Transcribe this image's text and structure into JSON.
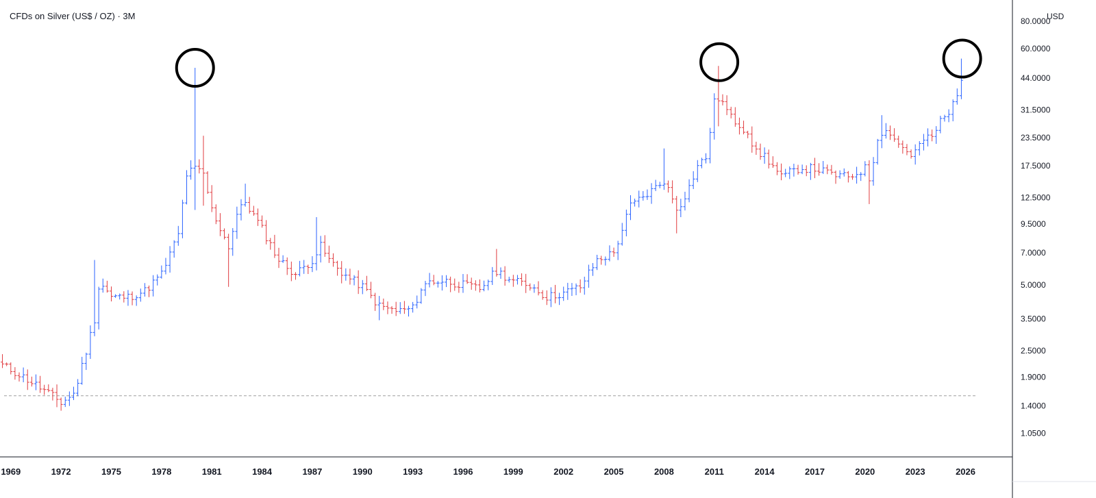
{
  "chart_data": {
    "type": "ohlc",
    "title": "CFDs on Silver (US$ / OZ) · 3M",
    "currency": "USD",
    "y_scale": "log",
    "ylim": [
      0.82,
      100
    ],
    "y_ticks": [
      "80.0000",
      "60.0000",
      "44.0000",
      "31.5000",
      "23.5000",
      "17.5000",
      "12.5000",
      "9.5000",
      "7.0000",
      "5.0000",
      "3.5000",
      "2.5000",
      "1.9000",
      "1.4000",
      "1.0500"
    ],
    "x_ticks": [
      "1969",
      "1972",
      "1975",
      "1978",
      "1981",
      "1984",
      "1987",
      "1990",
      "1993",
      "1996",
      "1999",
      "2002",
      "2005",
      "2008",
      "2011",
      "2014",
      "2017",
      "2020",
      "2023",
      "2026"
    ],
    "xlim": [
      1968.6,
      2028.8
    ],
    "up_color": "#2962ff",
    "down_color": "#e03a3e",
    "horizontal_line": {
      "value": 1.56,
      "style": "dashed",
      "color": "#9e9e9e"
    },
    "annotations": [
      {
        "shape": "circle",
        "x": 1980.0,
        "y": 49.0
      },
      {
        "shape": "circle",
        "x": 2011.3,
        "y": 52.0
      },
      {
        "shape": "circle",
        "x": 2025.8,
        "y": 54.0
      }
    ],
    "anchors": [
      [
        1968.5,
        2.15
      ],
      [
        1969.5,
        1.95
      ],
      [
        1970.5,
        1.75
      ],
      [
        1971.5,
        1.55
      ],
      [
        1972.0,
        1.45
      ],
      [
        1972.8,
        1.6
      ],
      [
        1973.5,
        2.5
      ],
      [
        1974.0,
        3.5
      ],
      [
        1974.3,
        5.2
      ],
      [
        1975.0,
        4.4
      ],
      [
        1976.0,
        4.4
      ],
      [
        1977.0,
        4.7
      ],
      [
        1978.0,
        5.6
      ],
      [
        1979.0,
        8.5
      ],
      [
        1979.5,
        16.0
      ],
      [
        1980.0,
        17.0
      ],
      [
        1980.5,
        16.0
      ],
      [
        1981.0,
        11.0
      ],
      [
        1982.0,
        7.5
      ],
      [
        1982.5,
        10.5
      ],
      [
        1983.0,
        12.0
      ],
      [
        1984.0,
        9.0
      ],
      [
        1985.0,
        6.5
      ],
      [
        1986.0,
        5.6
      ],
      [
        1987.0,
        6.5
      ],
      [
        1987.5,
        7.5
      ],
      [
        1988.0,
        6.5
      ],
      [
        1989.0,
        5.5
      ],
      [
        1990.0,
        4.9
      ],
      [
        1991.0,
        4.0
      ],
      [
        1992.0,
        3.8
      ],
      [
        1993.0,
        3.9
      ],
      [
        1993.5,
        4.8
      ],
      [
        1994.0,
        5.2
      ],
      [
        1995.0,
        5.2
      ],
      [
        1996.0,
        5.0
      ],
      [
        1997.0,
        4.8
      ],
      [
        1998.0,
        5.8
      ],
      [
        1999.0,
        5.2
      ],
      [
        2000.0,
        5.0
      ],
      [
        2001.0,
        4.4
      ],
      [
        2002.0,
        4.6
      ],
      [
        2003.0,
        4.9
      ],
      [
        2004.0,
        6.5
      ],
      [
        2005.0,
        7.0
      ],
      [
        2006.0,
        11.5
      ],
      [
        2007.0,
        13.0
      ],
      [
        2008.0,
        15.0
      ],
      [
        2008.8,
        11.0
      ],
      [
        2009.5,
        14.0
      ],
      [
        2010.0,
        17.5
      ],
      [
        2010.5,
        19.0
      ],
      [
        2011.0,
        34.0
      ],
      [
        2011.3,
        36.0
      ],
      [
        2012.0,
        29.0
      ],
      [
        2013.0,
        25.0
      ],
      [
        2013.5,
        20.0
      ],
      [
        2014.0,
        19.5
      ],
      [
        2015.0,
        15.5
      ],
      [
        2016.0,
        17.0
      ],
      [
        2017.0,
        17.0
      ],
      [
        2018.0,
        16.0
      ],
      [
        2019.0,
        15.5
      ],
      [
        2020.0,
        17.0
      ],
      [
        2020.3,
        15.0
      ],
      [
        2020.8,
        25.0
      ],
      [
        2021.5,
        25.0
      ],
      [
        2022.0,
        22.0
      ],
      [
        2022.8,
        19.5
      ],
      [
        2023.5,
        23.0
      ],
      [
        2024.0,
        23.5
      ],
      [
        2024.5,
        28.0
      ],
      [
        2025.0,
        30.0
      ],
      [
        2025.5,
        38.0
      ],
      [
        2025.9,
        48.0
      ]
    ],
    "spikes": [
      {
        "t": 1974.0,
        "high": 6.5
      },
      {
        "t": 1979.9,
        "high": 49.0,
        "low": 11.0
      },
      {
        "t": 1980.6,
        "high": 24.0,
        "low": 11.5
      },
      {
        "t": 1982.0,
        "low": 4.9
      },
      {
        "t": 1983.0,
        "high": 14.5
      },
      {
        "t": 1987.3,
        "high": 10.2
      },
      {
        "t": 1991.0,
        "low": 3.45
      },
      {
        "t": 1998.0,
        "high": 7.3
      },
      {
        "t": 2008.0,
        "high": 21.0
      },
      {
        "t": 2008.8,
        "low": 8.6
      },
      {
        "t": 2011.3,
        "high": 50.0,
        "low": 26.5
      },
      {
        "t": 2020.2,
        "low": 11.7
      },
      {
        "t": 2020.9,
        "high": 29.8
      },
      {
        "t": 2025.8,
        "high": 54.0
      }
    ],
    "bars_per_year": 4,
    "bar_start": 1968.5,
    "bar_end": 2025.9
  }
}
